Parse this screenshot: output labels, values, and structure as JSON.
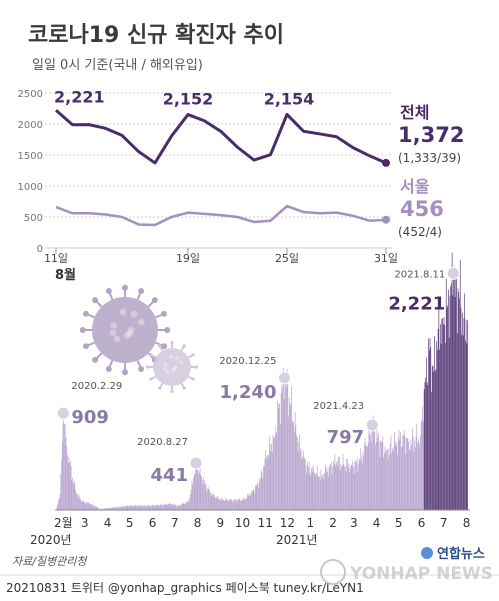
{
  "header": {
    "title": "코로나19 신규 확진자 추이",
    "subtitle": "일일 0시 기준(국내 / 해외유입)"
  },
  "colors": {
    "total": "#4a2d68",
    "seoul": "#a58fbf",
    "bar": "#b9a6cf",
    "bar_dark": "#5b3f7a",
    "grid": "#cfcfcf",
    "text": "#444444"
  },
  "chart_data": [
    {
      "type": "line",
      "x_tick_labels": [
        "11일",
        "19일",
        "25일",
        "31일"
      ],
      "x_tick_days": [
        11,
        19,
        25,
        31
      ],
      "month_label": "8월",
      "y_ticks": [
        0,
        500,
        1000,
        1500,
        2000,
        2500
      ],
      "ylim": [
        0,
        2500
      ],
      "xlim": [
        11,
        31
      ],
      "series": [
        {
          "name": "전체",
          "x": [
            11,
            12,
            13,
            14,
            15,
            16,
            17,
            18,
            19,
            20,
            21,
            22,
            23,
            24,
            25,
            26,
            27,
            28,
            29,
            30,
            31
          ],
          "values": [
            2221,
            1987,
            1990,
            1930,
            1816,
            1556,
            1372,
            1805,
            2152,
            2050,
            1880,
            1625,
            1418,
            1505,
            2154,
            1883,
            1840,
            1795,
            1619,
            1487,
            1372
          ],
          "label_total": "1,372",
          "label_detail": "(1,333/39)",
          "annotations": [
            {
              "day": 11,
              "text": "2,221"
            },
            {
              "day": 19,
              "text": "2,152"
            },
            {
              "day": 25,
              "text": "2,154"
            }
          ]
        },
        {
          "name": "서울",
          "x": [
            11,
            12,
            13,
            14,
            15,
            16,
            17,
            18,
            19,
            20,
            21,
            22,
            23,
            24,
            25,
            26,
            27,
            28,
            29,
            30,
            31
          ],
          "values": [
            660,
            560,
            560,
            540,
            500,
            380,
            370,
            500,
            570,
            550,
            530,
            500,
            420,
            440,
            677,
            580,
            560,
            570,
            520,
            440,
            456
          ],
          "label_total": "456",
          "label_detail": "(452/4)"
        }
      ]
    },
    {
      "type": "bar",
      "x_tick_labels": [
        "2월",
        "3",
        "4",
        "5",
        "6",
        "7",
        "8",
        "9",
        "10",
        "11",
        "12",
        "1",
        "2",
        "3",
        "4",
        "5",
        "6",
        "7",
        "8"
      ],
      "year_labels": [
        "2020년",
        "2021년"
      ],
      "callouts": [
        {
          "date": "2020.2.29",
          "value": "909",
          "index": 10
        },
        {
          "date": "2020.8.27",
          "value": "441",
          "index": 190
        },
        {
          "date": "2020.12.25",
          "value": "1,240",
          "index": 310
        },
        {
          "date": "2021.4.23",
          "value": "797",
          "index": 429
        },
        {
          "date": "2021.8.11",
          "value": "2,221",
          "index": 539
        }
      ],
      "ylim": [
        0,
        2300
      ],
      "series": [
        {
          "name": "신규 확진자",
          "keypoints": [
            [
              0,
              1
            ],
            [
              5,
              150
            ],
            [
              10,
              909
            ],
            [
              14,
              600
            ],
            [
              18,
              440
            ],
            [
              22,
              300
            ],
            [
              28,
              150
            ],
            [
              35,
              80
            ],
            [
              45,
              60
            ],
            [
              60,
              10
            ],
            [
              80,
              25
            ],
            [
              100,
              40
            ],
            [
              120,
              40
            ],
            [
              140,
              45
            ],
            [
              155,
              60
            ],
            [
              165,
              40
            ],
            [
              180,
              80
            ],
            [
              186,
              300
            ],
            [
              190,
              441
            ],
            [
              196,
              330
            ],
            [
              205,
              200
            ],
            [
              215,
              120
            ],
            [
              225,
              100
            ],
            [
              240,
              90
            ],
            [
              255,
              100
            ],
            [
              265,
              170
            ],
            [
              275,
              250
            ],
            [
              285,
              500
            ],
            [
              295,
              680
            ],
            [
              303,
              1000
            ],
            [
              310,
              1240
            ],
            [
              318,
              1000
            ],
            [
              326,
              700
            ],
            [
              334,
              500
            ],
            [
              342,
              400
            ],
            [
              350,
              350
            ],
            [
              360,
              320
            ],
            [
              370,
              400
            ],
            [
              380,
              450
            ],
            [
              390,
              430
            ],
            [
              400,
              420
            ],
            [
              410,
              440
            ],
            [
              420,
              600
            ],
            [
              429,
              797
            ],
            [
              438,
              640
            ],
            [
              448,
              560
            ],
            [
              458,
              600
            ],
            [
              470,
              700
            ],
            [
              478,
              640
            ],
            [
              486,
              650
            ],
            [
              494,
              700
            ],
            [
              500,
              1200
            ],
            [
              506,
              1500
            ],
            [
              512,
              1300
            ],
            [
              518,
              1700
            ],
            [
              524,
              1800
            ],
            [
              530,
              1900
            ],
            [
              535,
              2100
            ],
            [
              539,
              2221
            ],
            [
              541,
              2000
            ],
            [
              545,
              2080
            ],
            [
              549,
              1900
            ],
            [
              553,
              1800
            ],
            [
              558,
              1780
            ]
          ]
        }
      ]
    }
  ],
  "footer": {
    "source": "자료/질병관리청",
    "credit": "20210831  트위터 @yonhap_graphics  페이스북 tuney.kr/LeYN1",
    "logo_text": "연합뉴스",
    "watermark": "YONHAP NEWS"
  }
}
